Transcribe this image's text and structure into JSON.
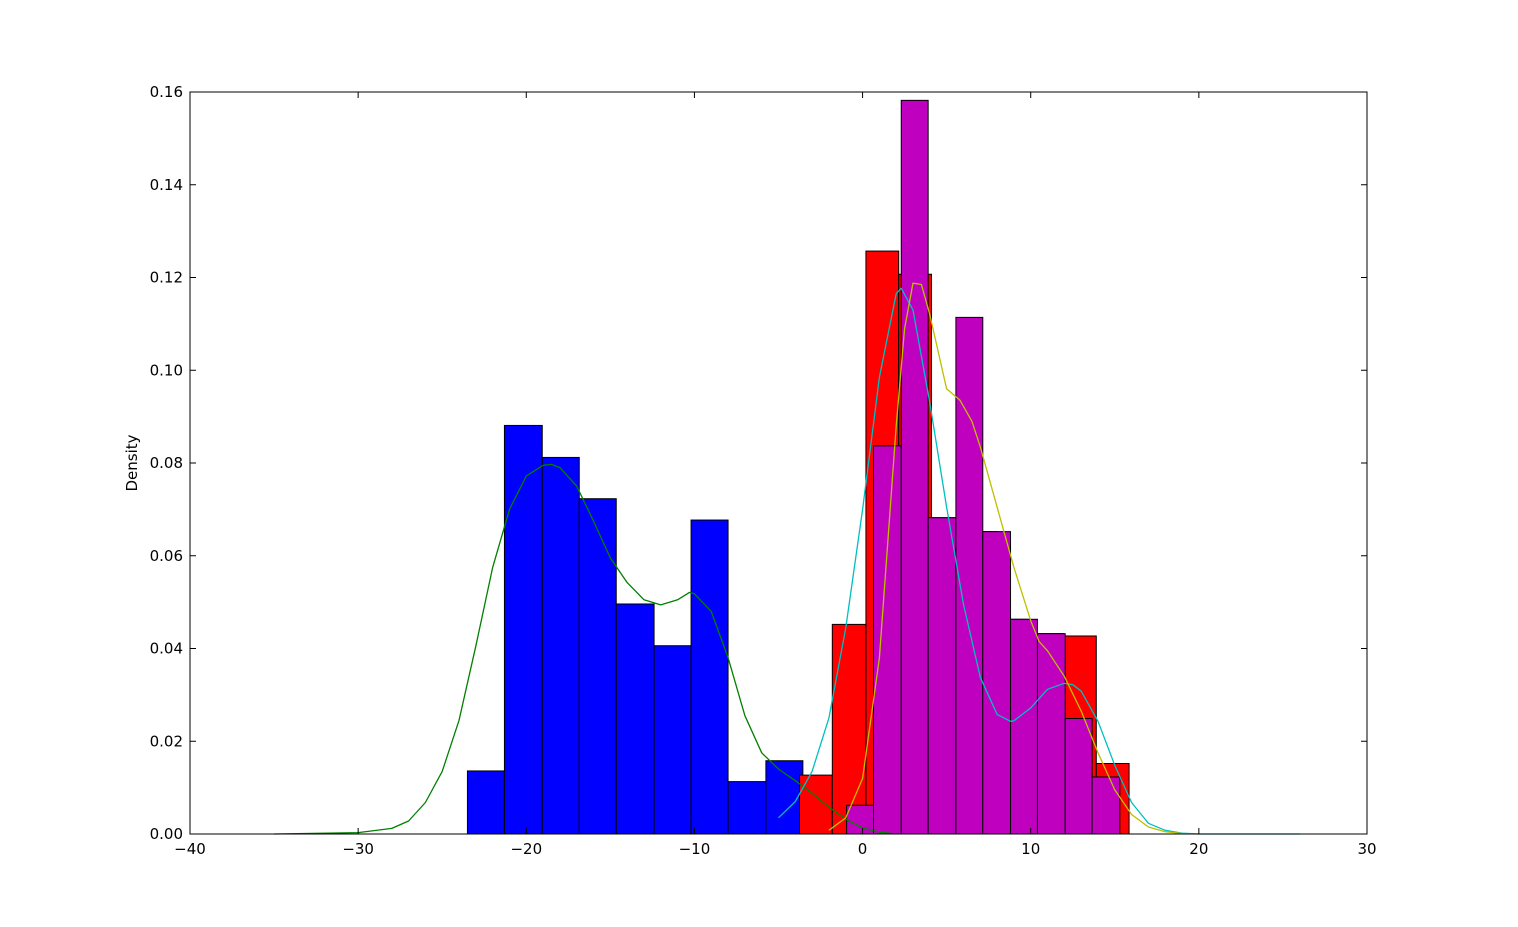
{
  "chart_data": {
    "type": "histogram",
    "title": "",
    "xlabel": "",
    "ylabel": "Density",
    "xlim": [
      -40,
      30
    ],
    "ylim": [
      0,
      0.16
    ],
    "x_ticks": [
      -40,
      -30,
      -20,
      -10,
      0,
      10,
      20,
      30
    ],
    "x_tick_labels": [
      "−40",
      "−30",
      "−20",
      "−10",
      "0",
      "10",
      "20",
      "30"
    ],
    "y_ticks": [
      0.0,
      0.02,
      0.04,
      0.06,
      0.08,
      0.1,
      0.12,
      0.14,
      0.16
    ],
    "y_tick_labels": [
      "0.00",
      "0.02",
      "0.04",
      "0.06",
      "0.08",
      "0.10",
      "0.12",
      "0.14",
      "0.16"
    ],
    "grid": false,
    "legend": "none",
    "histograms": [
      {
        "color": "#0000ff",
        "bin_edges": [
          -23.5,
          -21.3,
          -19.05,
          -16.85,
          -14.65,
          -12.4,
          -10.2,
          -8.0,
          -5.75,
          -3.55
        ],
        "values": [
          0.0136,
          0.0881,
          0.0812,
          0.0723,
          0.0496,
          0.0406,
          0.0677,
          0.0113,
          0.0158
        ]
      },
      {
        "color": "#ff0000",
        "bin_edges": [
          -3.75,
          -1.8,
          0.2,
          2.15,
          4.1,
          6.05,
          8.0,
          9.95,
          11.95,
          13.9,
          15.85
        ],
        "values": [
          0.0127,
          0.0452,
          0.1257,
          0.1207,
          0.0682,
          0.0652,
          0.0463,
          0.0432,
          0.0427,
          0.0152
        ]
      },
      {
        "color": "#bf00bf",
        "bin_edges": [
          -0.95,
          0.65,
          2.3,
          3.9,
          5.55,
          7.15,
          8.8,
          10.4,
          12.05,
          13.65,
          15.3
        ],
        "values": [
          0.0062,
          0.0837,
          0.1582,
          0.0682,
          0.1114,
          0.0652,
          0.0463,
          0.0432,
          0.0249,
          0.0123
        ]
      }
    ],
    "density_curves": [
      {
        "color": "#008000",
        "x": [
          -35,
          -30,
          -28,
          -27,
          -26,
          -25,
          -24,
          -23,
          -22,
          -21,
          -20,
          -19,
          -18.5,
          -18,
          -17,
          -16,
          -15,
          -14,
          -13,
          -12,
          -11,
          -10.3,
          -10,
          -9,
          -8,
          -7,
          -6,
          -5,
          -4,
          -3,
          -2,
          -1,
          0,
          1,
          2
        ],
        "y": [
          0,
          0.0003,
          0.0012,
          0.0028,
          0.0068,
          0.0135,
          0.0245,
          0.0405,
          0.0575,
          0.07,
          0.0772,
          0.0795,
          0.0797,
          0.079,
          0.075,
          0.0675,
          0.0595,
          0.0542,
          0.0505,
          0.0494,
          0.0505,
          0.0521,
          0.0518,
          0.048,
          0.038,
          0.0255,
          0.0175,
          0.014,
          0.0115,
          0.0088,
          0.0058,
          0.0032,
          0.0013,
          0.0004,
          0
        ]
      },
      {
        "color": "#00bfbf",
        "x": [
          -5,
          -4,
          -3,
          -2,
          -1,
          0,
          1,
          2,
          2.3,
          3,
          4,
          5,
          6,
          7,
          8,
          8.8,
          9,
          10,
          11,
          12,
          12.5,
          13,
          14,
          15,
          16,
          17,
          18,
          19,
          20,
          22,
          26
        ],
        "y": [
          0.0035,
          0.007,
          0.0135,
          0.025,
          0.0445,
          0.07,
          0.0985,
          0.1165,
          0.1177,
          0.113,
          0.093,
          0.0705,
          0.0495,
          0.0338,
          0.0258,
          0.0243,
          0.0244,
          0.0272,
          0.0312,
          0.0325,
          0.0322,
          0.0308,
          0.0243,
          0.0148,
          0.0068,
          0.0023,
          0.0008,
          0.0002,
          0,
          0,
          0
        ]
      },
      {
        "color": "#bfbf00",
        "x": [
          -2,
          -1,
          0,
          1,
          2,
          2.5,
          3,
          3.5,
          4,
          5,
          5.8,
          6.5,
          7,
          8,
          9,
          10,
          10.5,
          11,
          12,
          13,
          14,
          15,
          16,
          17,
          18,
          19,
          20
        ],
        "y": [
          0.0008,
          0.0035,
          0.012,
          0.038,
          0.088,
          0.109,
          0.1188,
          0.1185,
          0.112,
          0.096,
          0.0935,
          0.089,
          0.0835,
          0.0705,
          0.0575,
          0.046,
          0.0415,
          0.0395,
          0.034,
          0.0265,
          0.0175,
          0.0095,
          0.0042,
          0.0015,
          0.0005,
          0.0001,
          0
        ]
      }
    ]
  }
}
